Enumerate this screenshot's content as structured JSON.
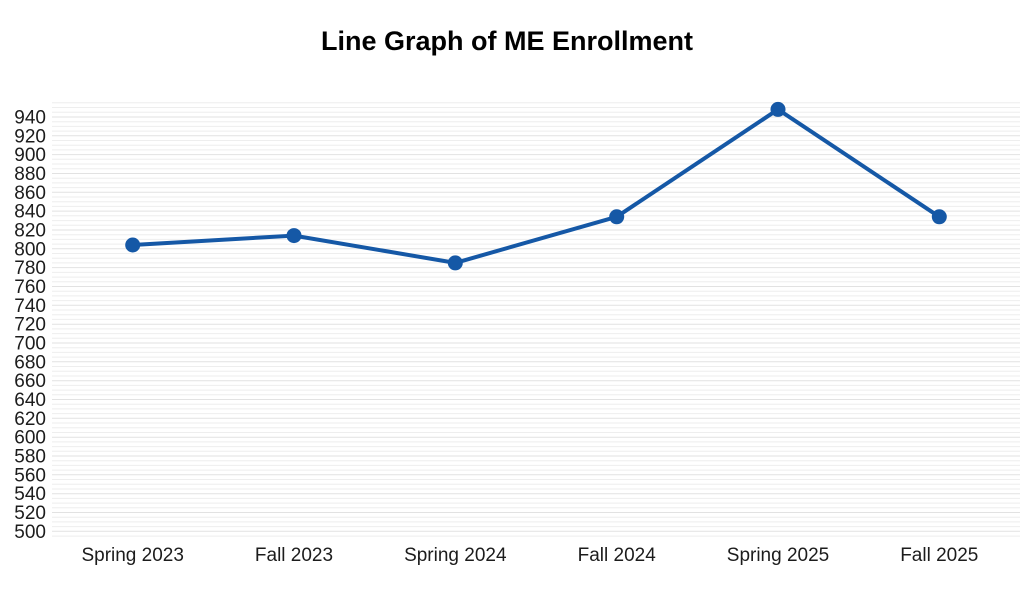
{
  "chart_data": {
    "type": "line",
    "title": "Line Graph of ME Enrollment",
    "categories": [
      "Spring 2023",
      "Fall 2023",
      "Spring 2024",
      "Fall 2024",
      "Spring 2025",
      "Fall 2025"
    ],
    "values": [
      804,
      814,
      785,
      834,
      948,
      834
    ],
    "xlabel": "",
    "ylabel": "",
    "yticks": {
      "min": 500,
      "max": 940,
      "step": 20
    },
    "minor_grid_step": 5,
    "ylim": [
      494,
      958
    ],
    "grid": true,
    "legend": "none",
    "colors": {
      "line": "#1558a6",
      "marker": "#1558a6",
      "grid_minor": "#eeeeee",
      "grid_major": "#e2e2e2",
      "text": "#1c1c1c",
      "title": "#000000",
      "background": "#ffffff"
    }
  }
}
